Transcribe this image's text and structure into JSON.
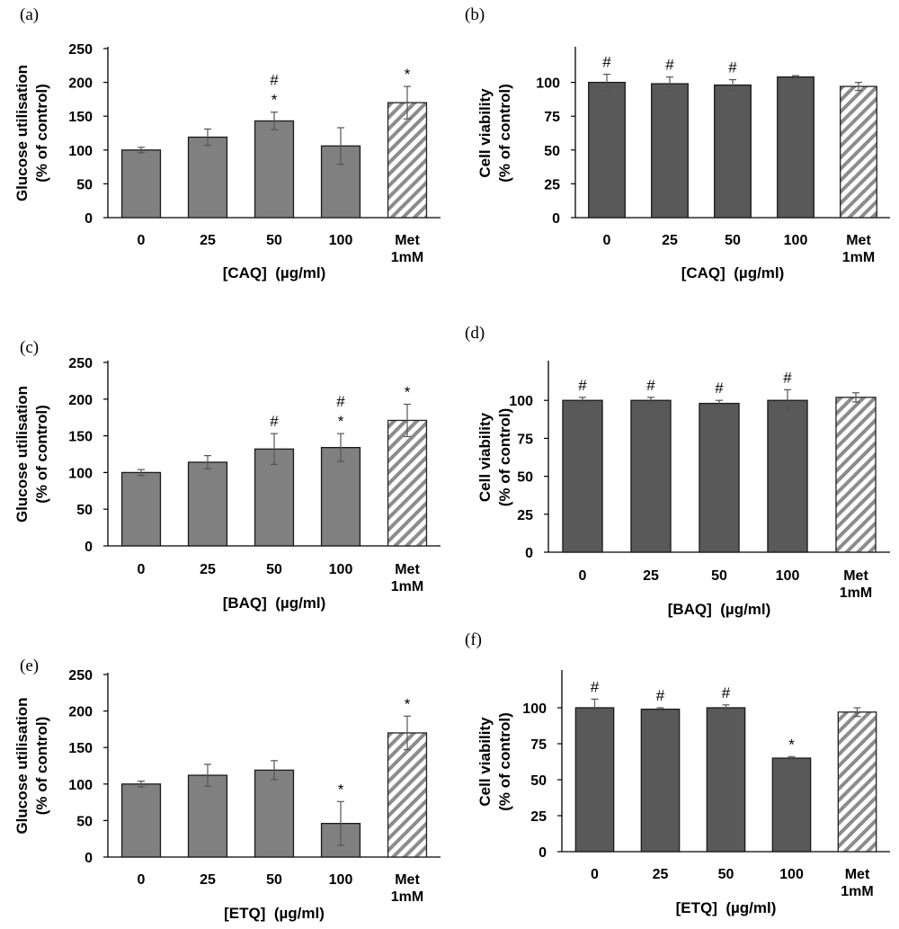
{
  "chart_data": [
    {
      "panel": "(a)",
      "type": "bar",
      "categories": [
        "0",
        "25",
        "50",
        "100",
        "Met\n1mM"
      ],
      "values": [
        100,
        119,
        143,
        106,
        170
      ],
      "errors": [
        4,
        12,
        13,
        27,
        24
      ],
      "annotations": [
        "",
        "",
        "#\n*",
        "",
        "*"
      ],
      "bar_color": "#808080",
      "hatched_last": true,
      "xlabel": "[CAQ]  (µg/ml)",
      "ylabel": "Glucose utilisation\n(% of control)",
      "ylim": [
        0,
        250
      ],
      "yticks": [
        0,
        50,
        100,
        150,
        200,
        250
      ]
    },
    {
      "panel": "(b)",
      "type": "bar",
      "categories": [
        "0",
        "25",
        "50",
        "100",
        "Met\n1mM"
      ],
      "values": [
        100,
        99,
        98,
        104,
        97
      ],
      "errors": [
        6,
        5,
        4,
        1,
        3
      ],
      "annotations": [
        "#",
        "#",
        "#",
        "",
        ""
      ],
      "bar_color": "#595959",
      "hatched_last": true,
      "xlabel": "[CAQ]  (µg/ml)",
      "ylabel": "Cell viability\n(% of control)",
      "ylim": [
        0,
        125
      ],
      "yticks": [
        0,
        25,
        50,
        75,
        100
      ]
    },
    {
      "panel": "(c)",
      "type": "bar",
      "categories": [
        "0",
        "25",
        "50",
        "100",
        "Met\n1mM"
      ],
      "values": [
        100,
        114,
        132,
        134,
        171
      ],
      "errors": [
        4,
        9,
        21,
        19,
        22
      ],
      "annotations": [
        "",
        "",
        "#",
        "#\n*",
        "*"
      ],
      "bar_color": "#808080",
      "hatched_last": true,
      "xlabel": "[BAQ]  (µg/ml)",
      "ylabel": "Glucose utilisation\n(% of control)",
      "ylim": [
        0,
        250
      ],
      "yticks": [
        0,
        50,
        100,
        150,
        200,
        250
      ]
    },
    {
      "panel": "(d)",
      "type": "bar",
      "categories": [
        "0",
        "25",
        "50",
        "100",
        "Met\n1mM"
      ],
      "values": [
        100,
        100,
        98,
        100,
        102
      ],
      "errors": [
        2,
        2,
        2,
        7,
        3
      ],
      "annotations": [
        "#",
        "#",
        "#",
        "#",
        ""
      ],
      "bar_color": "#595959",
      "hatched_last": true,
      "xlabel": "[BAQ]  (µg/ml)",
      "ylabel": "Cell viability\n(% of control)",
      "ylim": [
        0,
        125
      ],
      "yticks": [
        0,
        25,
        50,
        75,
        100
      ]
    },
    {
      "panel": "(e)",
      "type": "bar",
      "categories": [
        "0",
        "25",
        "50",
        "100",
        "Met\n1mM"
      ],
      "values": [
        100,
        112,
        119,
        46,
        170
      ],
      "errors": [
        4,
        15,
        13,
        30,
        23
      ],
      "annotations": [
        "",
        "",
        "",
        "*",
        "*"
      ],
      "bar_color": "#808080",
      "hatched_last": true,
      "xlabel": "[ETQ]  (µg/ml)",
      "ylabel": "Glucose utilisation\n(% of control)",
      "ylim": [
        0,
        250
      ],
      "yticks": [
        0,
        50,
        100,
        150,
        200,
        250
      ]
    },
    {
      "panel": "(f)",
      "type": "bar",
      "categories": [
        "0",
        "25",
        "50",
        "100",
        "Met\n1mM"
      ],
      "values": [
        100,
        99,
        100,
        65,
        97
      ],
      "errors": [
        6,
        1,
        2,
        1,
        3
      ],
      "annotations": [
        "#",
        "#",
        "#",
        "*",
        ""
      ],
      "bar_color": "#595959",
      "hatched_last": true,
      "xlabel": "[ETQ]  (µg/ml)",
      "ylabel": "Cell viability\n(% of control)",
      "ylim": [
        0,
        125
      ],
      "yticks": [
        0,
        25,
        50,
        75,
        100
      ]
    }
  ]
}
